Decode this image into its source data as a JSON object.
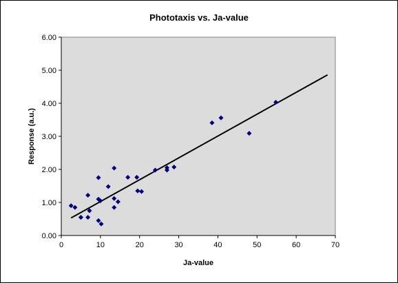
{
  "chart_data": {
    "type": "scatter",
    "title": "Phototaxis vs. Ja-value",
    "xlabel": "Ja-value",
    "ylabel": "Response (a.u.)",
    "xlim": [
      0,
      70
    ],
    "ylim": [
      0,
      6
    ],
    "x_ticks": [
      "0",
      "10",
      "20",
      "30",
      "40",
      "50",
      "60",
      "70"
    ],
    "y_ticks": [
      "0.00",
      "1.00",
      "2.00",
      "3.00",
      "4.00",
      "5.00",
      "6.00"
    ],
    "plot_background": "#dcdcdc",
    "marker_color": "#000080",
    "trendline_color": "#000000",
    "grid": false,
    "legend": "none",
    "series": [
      {
        "marker": "diamond",
        "points": [
          [
            2.5,
            0.9
          ],
          [
            3.5,
            0.85
          ],
          [
            5.0,
            0.55
          ],
          [
            5.0,
            0.55
          ],
          [
            6.8,
            1.22
          ],
          [
            6.8,
            0.55
          ],
          [
            7.2,
            0.75
          ],
          [
            9.5,
            1.75
          ],
          [
            9.5,
            1.1
          ],
          [
            9.5,
            0.45
          ],
          [
            10.0,
            1.05
          ],
          [
            10.2,
            0.35
          ],
          [
            12.0,
            1.48
          ],
          [
            13.5,
            2.04
          ],
          [
            13.5,
            1.12
          ],
          [
            13.5,
            0.85
          ],
          [
            14.5,
            1.02
          ],
          [
            17.0,
            1.76
          ],
          [
            19.3,
            1.76
          ],
          [
            19.5,
            1.35
          ],
          [
            20.5,
            1.33
          ],
          [
            24.0,
            1.98
          ],
          [
            27.0,
            2.05
          ],
          [
            27.0,
            1.98
          ],
          [
            28.8,
            2.07
          ],
          [
            38.5,
            3.41
          ],
          [
            40.8,
            3.56
          ],
          [
            48.0,
            3.09
          ],
          [
            54.8,
            4.03
          ]
        ]
      }
    ],
    "trendline": {
      "x": [
        2.5,
        68.0
      ],
      "y": [
        0.53,
        4.86
      ]
    }
  }
}
